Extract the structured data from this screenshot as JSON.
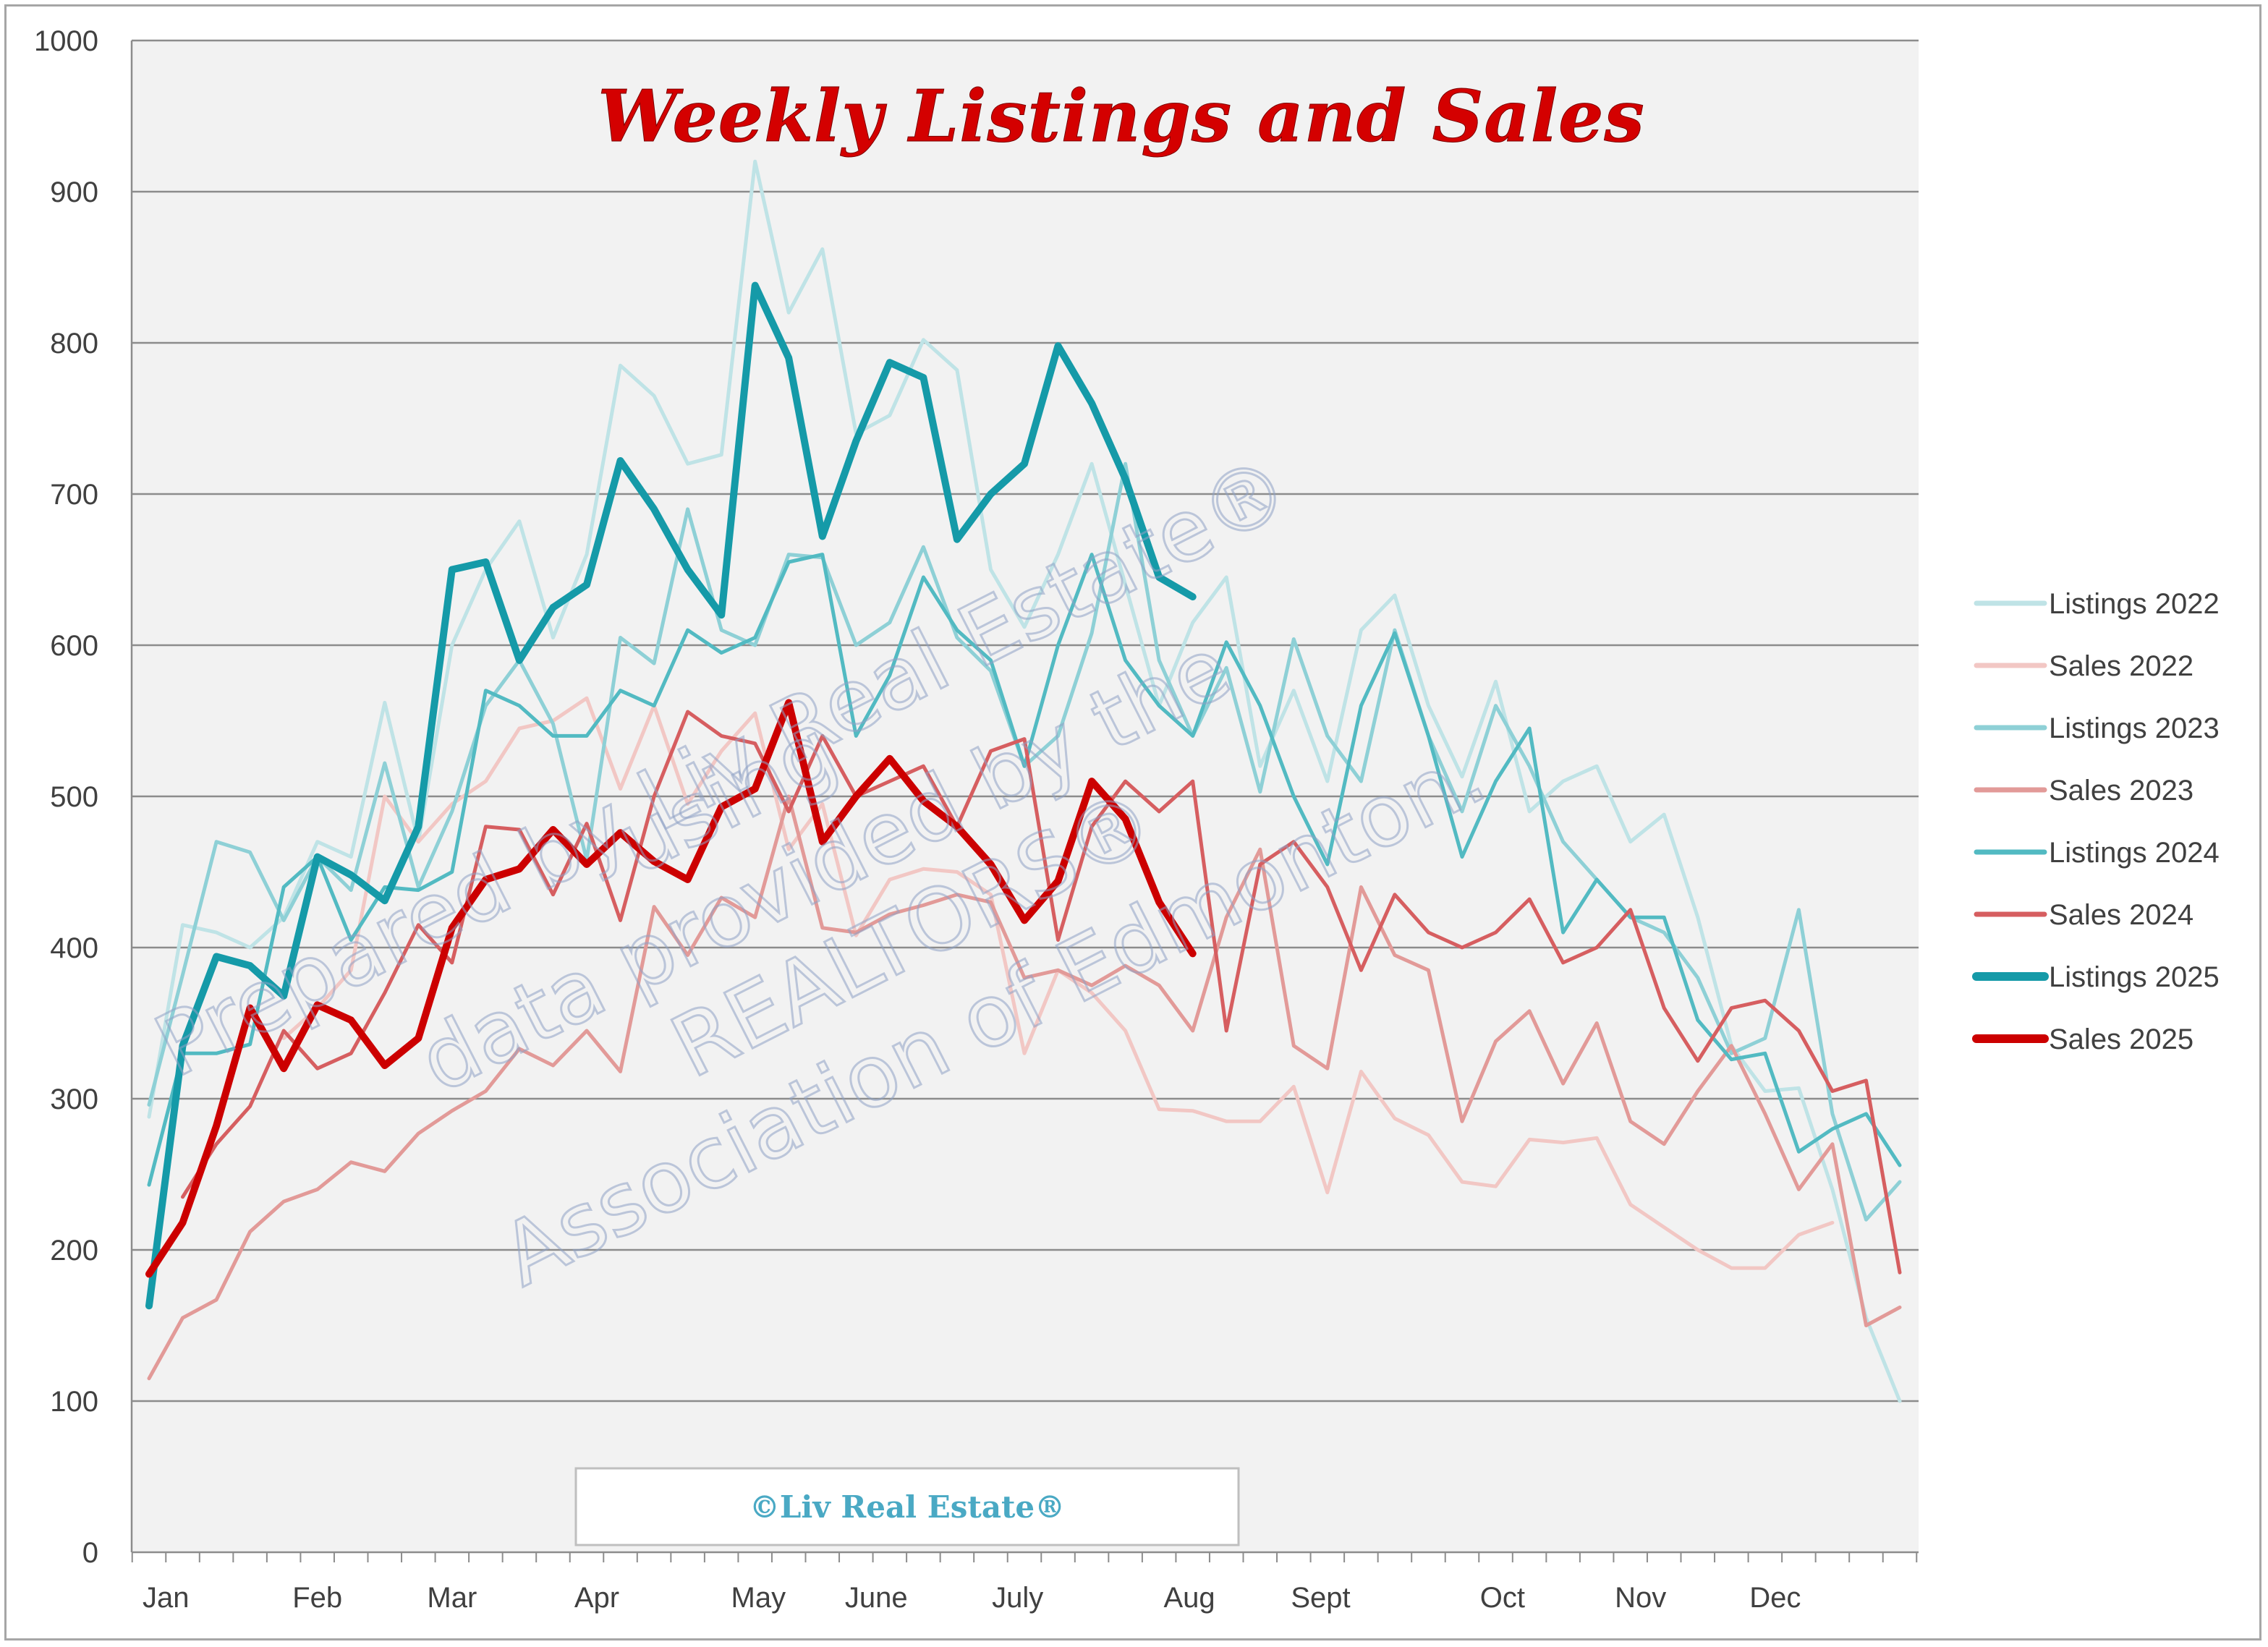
{
  "chart_data": {
    "type": "line",
    "title": "Weekly Listings and Sales",
    "ylim": [
      0,
      1000
    ],
    "yticks": [
      0,
      100,
      200,
      300,
      400,
      500,
      600,
      700,
      800,
      900,
      1000
    ],
    "weeks": 53,
    "month_labels": [
      {
        "label": "Jan",
        "week": 0.5
      },
      {
        "label": "Feb",
        "week": 5.0
      },
      {
        "label": "Mar",
        "week": 9.0
      },
      {
        "label": "Apr",
        "week": 13.3
      },
      {
        "label": "May",
        "week": 18.1
      },
      {
        "label": "June",
        "week": 21.6
      },
      {
        "label": "July",
        "week": 25.8
      },
      {
        "label": "Aug",
        "week": 30.9
      },
      {
        "label": "Sept",
        "week": 34.8
      },
      {
        "label": "Oct",
        "week": 40.2
      },
      {
        "label": "Nov",
        "week": 44.3
      },
      {
        "label": "Dec",
        "week": 48.3
      }
    ],
    "legend_position": "right",
    "grid": true,
    "series": [
      {
        "name": "Listings 2022",
        "color": "#bfe3e6",
        "width": 5,
        "values": [
          288,
          415,
          410,
          400,
          420,
          470,
          460,
          562,
          470,
          600,
          650,
          682,
          605,
          660,
          785,
          765,
          720,
          726,
          920,
          820,
          862,
          740,
          752,
          802,
          782,
          650,
          612,
          660,
          720,
          640,
          560,
          615,
          645,
          520,
          570,
          510,
          610,
          633,
          560,
          513,
          576,
          490,
          510,
          520,
          470,
          488,
          420,
          335,
          305,
          307,
          240,
          155,
          100
        ]
      },
      {
        "name": "Sales 2022",
        "color": "#f2c7c4",
        "width": 5,
        "values": [
          null,
          null,
          null,
          null,
          340,
          360,
          385,
          500,
          470,
          495,
          510,
          545,
          550,
          565,
          505,
          560,
          495,
          530,
          555,
          465,
          495,
          408,
          445,
          452,
          450,
          435,
          330,
          385,
          370,
          345,
          293,
          292,
          285,
          285,
          308,
          238,
          318,
          287,
          276,
          245,
          242,
          273,
          271,
          274,
          230,
          215,
          200,
          188,
          188,
          210,
          218,
          null,
          null
        ]
      },
      {
        "name": "Listings 2023",
        "color": "#8ed0d6",
        "width": 5,
        "values": [
          296,
          382,
          470,
          463,
          418,
          460,
          438,
          522,
          440,
          490,
          560,
          590,
          548,
          458,
          605,
          588,
          690,
          610,
          600,
          660,
          658,
          600,
          615,
          665,
          605,
          583,
          520,
          540,
          608,
          720,
          590,
          540,
          585,
          503,
          604,
          540,
          510,
          610,
          540,
          490,
          560,
          520,
          470,
          445,
          420,
          410,
          380,
          330,
          340,
          425,
          290,
          220,
          245
        ]
      },
      {
        "name": "Sales 2023",
        "color": "#e29a98",
        "width": 5,
        "values": [
          115,
          155,
          167,
          212,
          232,
          240,
          258,
          252,
          277,
          292,
          305,
          333,
          322,
          345,
          318,
          427,
          395,
          433,
          420,
          500,
          413,
          410,
          422,
          428,
          435,
          430,
          380,
          385,
          375,
          388,
          375,
          345,
          420,
          465,
          335,
          320,
          440,
          395,
          385,
          285,
          338,
          358,
          310,
          350,
          285,
          270,
          305,
          335,
          290,
          240,
          270,
          150,
          162
        ]
      },
      {
        "name": "Listings 2024",
        "color": "#52bac2",
        "width": 5,
        "values": [
          243,
          330,
          330,
          336,
          440,
          460,
          405,
          440,
          438,
          450,
          570,
          560,
          540,
          540,
          570,
          560,
          610,
          595,
          605,
          655,
          660,
          540,
          580,
          645,
          610,
          590,
          520,
          600,
          660,
          590,
          560,
          540,
          602,
          560,
          500,
          455,
          560,
          608,
          540,
          460,
          510,
          545,
          410,
          445,
          420,
          420,
          352,
          326,
          330,
          265,
          280,
          290,
          256
        ]
      },
      {
        "name": "Sales 2024",
        "color": "#d65e60",
        "width": 5,
        "values": [
          null,
          235,
          270,
          295,
          345,
          320,
          330,
          370,
          415,
          390,
          480,
          478,
          435,
          482,
          418,
          500,
          556,
          540,
          535,
          490,
          540,
          500,
          510,
          520,
          480,
          530,
          538,
          405,
          480,
          510,
          490,
          510,
          345,
          455,
          470,
          440,
          385,
          435,
          410,
          400,
          410,
          432,
          390,
          400,
          425,
          360,
          325,
          360,
          365,
          345,
          305,
          312,
          185
        ]
      },
      {
        "name": "Listings 2025",
        "color": "#159aa8",
        "width": 10,
        "values": [
          163,
          335,
          394,
          388,
          368,
          460,
          448,
          431,
          480,
          650,
          655,
          590,
          625,
          640,
          722,
          690,
          650,
          620,
          838,
          790,
          672,
          735,
          787,
          777,
          670,
          700,
          720,
          798,
          760,
          710,
          645,
          632,
          null,
          null,
          null,
          null,
          null,
          null,
          null,
          null,
          null,
          null,
          null,
          null,
          null,
          null,
          null,
          null,
          null,
          null,
          null,
          null,
          null
        ]
      },
      {
        "name": "Sales 2025",
        "color": "#cc0000",
        "width": 10,
        "values": [
          184,
          218,
          282,
          360,
          320,
          362,
          352,
          322,
          340,
          413,
          445,
          452,
          478,
          455,
          476,
          457,
          445,
          493,
          505,
          562,
          470,
          500,
          525,
          497,
          480,
          455,
          418,
          444,
          510,
          485,
          430,
          396,
          null,
          null,
          null,
          null,
          null,
          null,
          null,
          null,
          null,
          null,
          null,
          null,
          null,
          null,
          null,
          null,
          null,
          null,
          null,
          null,
          null
        ]
      }
    ],
    "watermark": [
      "Prepared by Liv Real Estate®",
      "using",
      "data provided by the",
      "REALTORS®",
      "Association of Edmonton."
    ],
    "copyright": "©Liv Real Estate®"
  }
}
